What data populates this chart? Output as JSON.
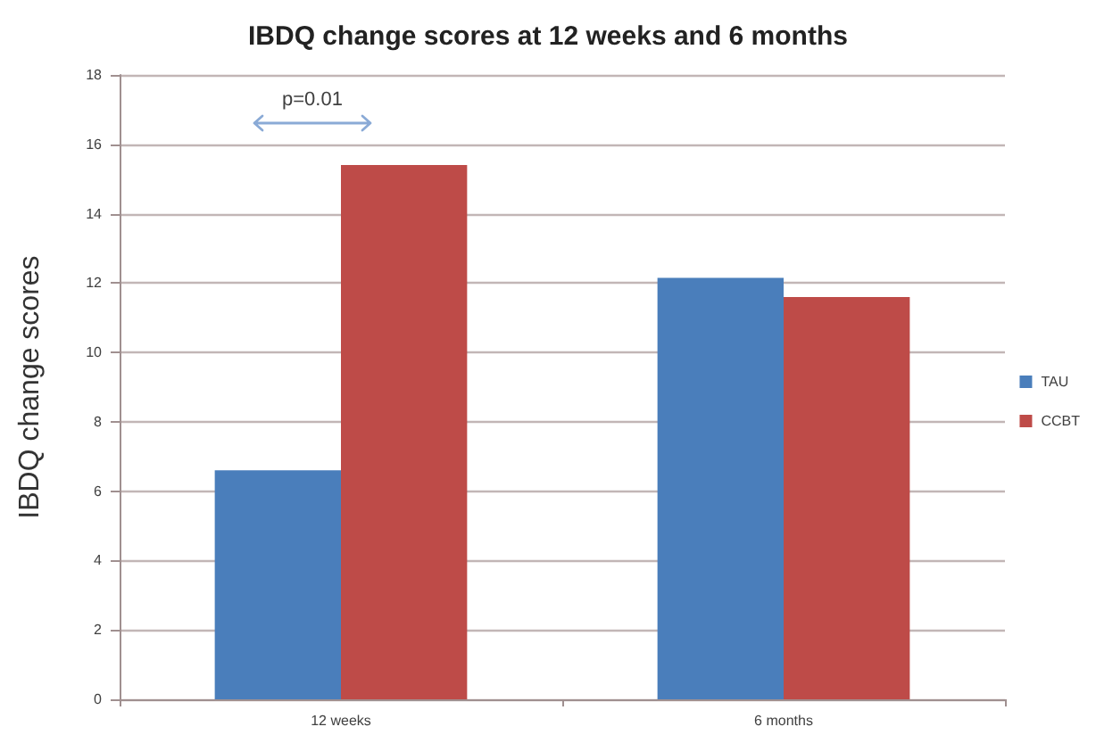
{
  "chart_data": {
    "type": "bar",
    "title": "IBDQ change scores at 12 weeks and 6 months",
    "ylabel": "IBDQ change scores",
    "categories": [
      "12 weeks",
      "6 months"
    ],
    "series": [
      {
        "name": "TAU",
        "color": "#4a7ebb",
        "values": [
          6.6,
          12.15
        ]
      },
      {
        "name": "CCBT",
        "color": "#be4b48",
        "values": [
          15.4,
          11.6
        ]
      }
    ],
    "ylim": [
      0,
      18
    ],
    "yticks": [
      0,
      2,
      4,
      6,
      8,
      10,
      12,
      14,
      16,
      18
    ],
    "grid": "y",
    "legend": "right",
    "annotations": [
      "p=0.01"
    ]
  }
}
